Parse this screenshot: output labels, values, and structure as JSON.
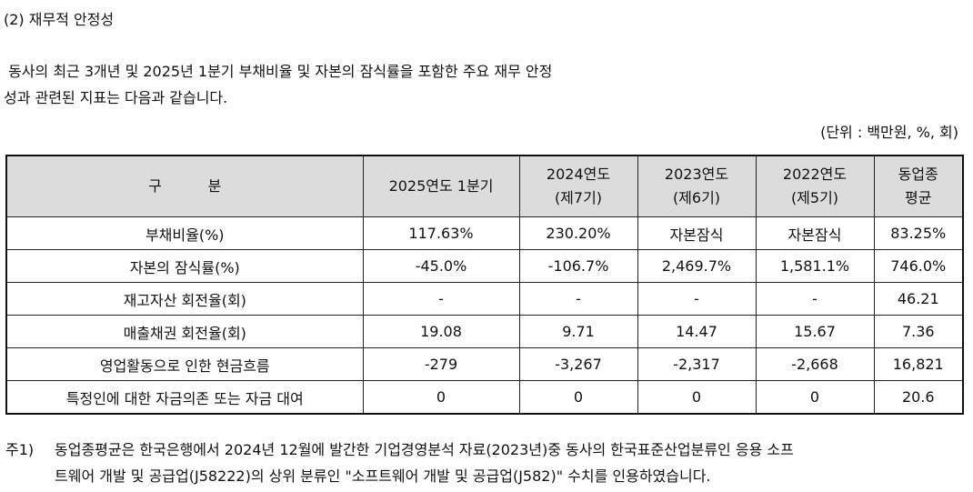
{
  "heading": "(2) 재무적 안정성",
  "paragraph": {
    "line1": " 동사의 최근 3개년 및 2025년 1분기 부채비율 및 자본의 잠식률을 포함한 주요 재무 안정",
    "line2": "성과 관련된 지표는 다음과 같습니다."
  },
  "unit": "(단위 : 백만원, %, 회)",
  "table": {
    "header": {
      "category": "구          분",
      "col1": "2025연도 1분기",
      "col2_l1": "2024연도",
      "col2_l2": "(제7기)",
      "col3_l1": "2023연도",
      "col3_l2": "(제6기)",
      "col4_l1": "2022연도",
      "col4_l2": "(제5기)",
      "col5_l1": "동업종",
      "col5_l2": "평균"
    },
    "rows": [
      {
        "label": "부채비율(%)",
        "v1": "117.63%",
        "v2": "230.20%",
        "v3": "자본잠식",
        "v4": "자본잠식",
        "v5": "83.25%"
      },
      {
        "label": "자본의 잠식률(%)",
        "v1": "-45.0%",
        "v2": "-106.7%",
        "v3": "2,469.7%",
        "v4": "1,581.1%",
        "v5": "746.0%"
      },
      {
        "label": "재고자산 회전율(회)",
        "v1": "-",
        "v2": "-",
        "v3": "-",
        "v4": "-",
        "v5": "46.21"
      },
      {
        "label": "매출채권 회전율(회)",
        "v1": "19.08",
        "v2": "9.71",
        "v3": "14.47",
        "v4": "15.67",
        "v5": "7.36"
      },
      {
        "label": "영업활동으로 인한 현금흐름",
        "v1": "-279",
        "v2": "-3,267",
        "v3": "-2,317",
        "v4": "-2,668",
        "v5": "16,821"
      },
      {
        "label": "특정인에 대한 자금의존 또는 자금 대여",
        "v1": "0",
        "v2": "0",
        "v3": "0",
        "v4": "0",
        "v5": "20.6"
      }
    ]
  },
  "note": {
    "mark": "주1)",
    "line1": "동업종평균은 한국은행에서 2024년 12월에 발간한 기업경영분석 자료(2023년)중 동사의 한국표준산업분류인 응용 소프",
    "line2": "트웨어 개발 및 공급업(J58222)의 상위 분류인 \"소프트웨어 개발 및 공급업(J582)\" 수치를 인용하였습니다."
  }
}
